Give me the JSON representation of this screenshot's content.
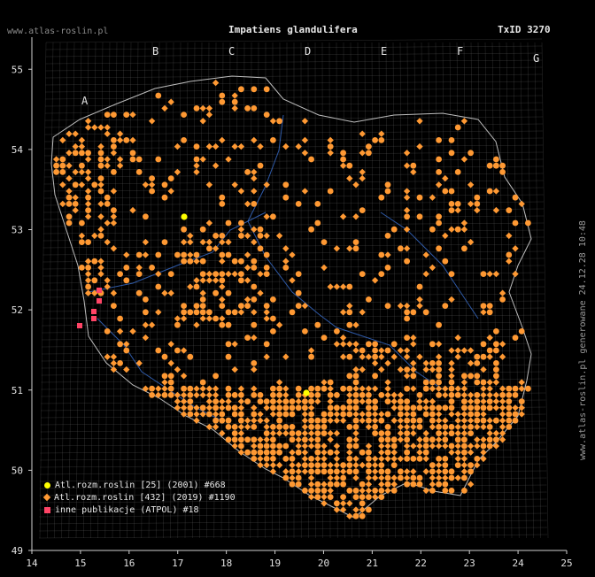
{
  "header": {
    "site": "www.atlas-roslin.pl",
    "species": "Impatiens glandulifera",
    "taxon_id": "TxID 3270"
  },
  "generated_note": "www.atlas-roslin.pl generowane 24.12.28 10:48",
  "axes": {
    "lon_ticks": [
      "14",
      "15",
      "16",
      "17",
      "18",
      "19",
      "20",
      "21",
      "22",
      "23",
      "24",
      "25"
    ],
    "lat_ticks": [
      "49",
      "50",
      "51",
      "52",
      "53",
      "54",
      "55"
    ]
  },
  "grid_letters": [
    "A",
    "B",
    "C",
    "D",
    "E",
    "F",
    "G"
  ],
  "legend": [
    {
      "label": "Atl.rozm.roslin [25] (2001) #668",
      "color": "#ffff00",
      "shape": "circle"
    },
    {
      "label": "Atl.rozm.roslin [432] (2019) #1190",
      "color": "#ff9933",
      "shape": "diamond"
    },
    {
      "label": "inne publikacje (ATPOL) #18",
      "color": "#ff4466",
      "shape": "square"
    }
  ],
  "colors": {
    "background": "#000000",
    "grid": "#6a6a6a",
    "border": "#cccccc",
    "rivers": "#3a6fd0",
    "record_orange": "#ff9933",
    "record_yellow": "#ffff00",
    "record_pink": "#ff4466"
  }
}
